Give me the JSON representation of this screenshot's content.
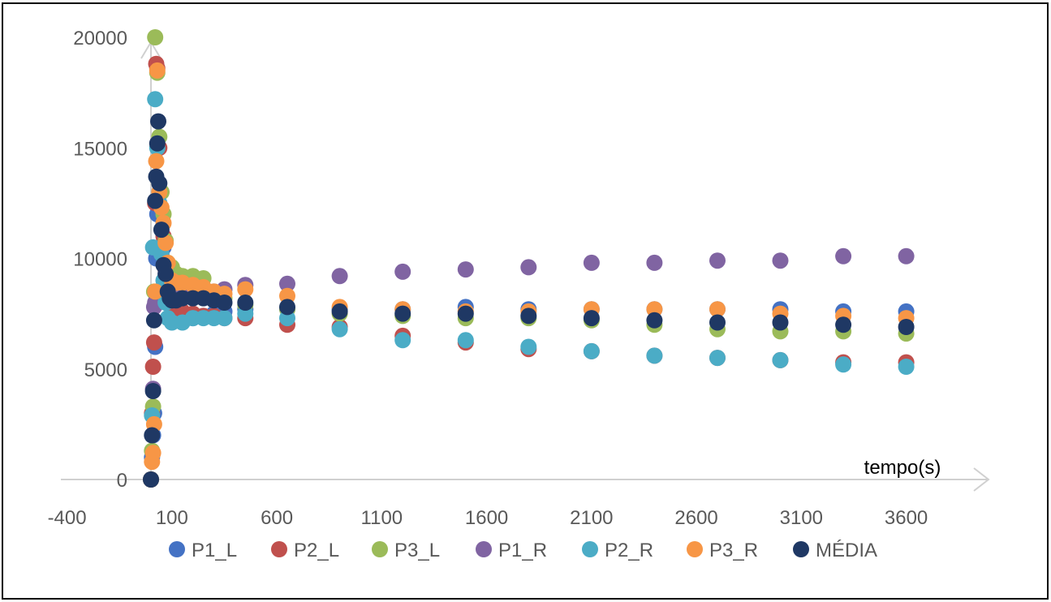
{
  "chart_data": {
    "type": "scatter",
    "title": "",
    "xlabel": "tempo(s)",
    "ylabel": "",
    "xlim": [
      -400,
      3600
    ],
    "ylim": [
      0,
      20000
    ],
    "xticks": [
      -400,
      100,
      600,
      1100,
      1600,
      2100,
      2600,
      3100,
      3600
    ],
    "yticks": [
      0,
      5000,
      10000,
      15000,
      20000
    ],
    "grid": false,
    "legend_position": "bottom",
    "series": [
      {
        "name": "P1_L",
        "color": "#4472C4",
        "points": [
          [
            0,
            0
          ],
          [
            5,
            1000
          ],
          [
            10,
            2000
          ],
          [
            15,
            3000
          ],
          [
            20,
            6000
          ],
          [
            25,
            10000
          ],
          [
            30,
            12000
          ],
          [
            40,
            13000
          ],
          [
            50,
            12000
          ],
          [
            60,
            10500
          ],
          [
            70,
            9500
          ],
          [
            80,
            8500
          ],
          [
            90,
            8000
          ],
          [
            100,
            7500
          ],
          [
            120,
            7300
          ],
          [
            150,
            7200
          ],
          [
            200,
            7300
          ],
          [
            250,
            7400
          ],
          [
            300,
            7500
          ],
          [
            350,
            7600
          ],
          [
            450,
            7700
          ],
          [
            650,
            7700
          ],
          [
            900,
            7700
          ],
          [
            1200,
            7700
          ],
          [
            1500,
            7800
          ],
          [
            1800,
            7700
          ],
          [
            2100,
            7700
          ],
          [
            2400,
            7700
          ],
          [
            2700,
            7700
          ],
          [
            3000,
            7700
          ],
          [
            3300,
            7600
          ],
          [
            3600,
            7600
          ]
        ]
      },
      {
        "name": "P2_L",
        "color": "#C0504D",
        "points": [
          [
            0,
            0
          ],
          [
            5,
            3000
          ],
          [
            10,
            5100
          ],
          [
            15,
            6200
          ],
          [
            20,
            12500
          ],
          [
            25,
            18800
          ],
          [
            30,
            18600
          ],
          [
            40,
            15000
          ],
          [
            50,
            13000
          ],
          [
            60,
            11000
          ],
          [
            70,
            9500
          ],
          [
            80,
            8500
          ],
          [
            90,
            8000
          ],
          [
            100,
            7800
          ],
          [
            150,
            7600
          ],
          [
            200,
            7500
          ],
          [
            250,
            7400
          ],
          [
            300,
            7400
          ],
          [
            350,
            7300
          ],
          [
            450,
            7300
          ],
          [
            650,
            7000
          ],
          [
            900,
            6900
          ],
          [
            1200,
            6500
          ],
          [
            1500,
            6200
          ],
          [
            1800,
            5900
          ],
          [
            2100,
            5800
          ],
          [
            2400,
            5600
          ],
          [
            2700,
            5500
          ],
          [
            3000,
            5400
          ],
          [
            3300,
            5300
          ],
          [
            3600,
            5300
          ]
        ]
      },
      {
        "name": "P3_L",
        "color": "#9BBB59",
        "points": [
          [
            0,
            0
          ],
          [
            5,
            1300
          ],
          [
            10,
            3300
          ],
          [
            15,
            8500
          ],
          [
            20,
            20000
          ],
          [
            30,
            18400
          ],
          [
            40,
            15500
          ],
          [
            50,
            13000
          ],
          [
            60,
            12000
          ],
          [
            70,
            10800
          ],
          [
            80,
            9800
          ],
          [
            100,
            9600
          ],
          [
            120,
            9300
          ],
          [
            150,
            9200
          ],
          [
            200,
            9200
          ],
          [
            250,
            9100
          ],
          [
            300,
            8500
          ],
          [
            350,
            8200
          ],
          [
            450,
            7900
          ],
          [
            650,
            7700
          ],
          [
            900,
            7500
          ],
          [
            1200,
            7400
          ],
          [
            1500,
            7300
          ],
          [
            1800,
            7300
          ],
          [
            2100,
            7200
          ],
          [
            2400,
            7000
          ],
          [
            2700,
            6800
          ],
          [
            3000,
            6700
          ],
          [
            3300,
            6700
          ],
          [
            3600,
            6600
          ]
        ]
      },
      {
        "name": "P1_R",
        "color": "#8064A2",
        "points": [
          [
            0,
            0
          ],
          [
            10,
            4100
          ],
          [
            15,
            7800
          ],
          [
            20,
            8000
          ],
          [
            30,
            8100
          ],
          [
            50,
            8200
          ],
          [
            100,
            8200
          ],
          [
            150,
            8300
          ],
          [
            200,
            8300
          ],
          [
            250,
            8400
          ],
          [
            300,
            8500
          ],
          [
            350,
            8600
          ],
          [
            450,
            8800
          ],
          [
            650,
            8850
          ],
          [
            900,
            9200
          ],
          [
            1200,
            9400
          ],
          [
            1500,
            9500
          ],
          [
            1800,
            9600
          ],
          [
            2100,
            9800
          ],
          [
            2400,
            9800
          ],
          [
            2700,
            9900
          ],
          [
            3000,
            9900
          ],
          [
            3300,
            10100
          ],
          [
            3600,
            10100
          ]
        ]
      },
      {
        "name": "P2_R",
        "color": "#4BACC6",
        "points": [
          [
            0,
            0
          ],
          [
            5,
            2900
          ],
          [
            10,
            10500
          ],
          [
            20,
            17200
          ],
          [
            30,
            15000
          ],
          [
            40,
            12500
          ],
          [
            50,
            10200
          ],
          [
            60,
            9000
          ],
          [
            70,
            8000
          ],
          [
            80,
            7300
          ],
          [
            100,
            7100
          ],
          [
            150,
            7100
          ],
          [
            200,
            7300
          ],
          [
            250,
            7300
          ],
          [
            300,
            7300
          ],
          [
            350,
            7300
          ],
          [
            450,
            7500
          ],
          [
            650,
            7300
          ],
          [
            900,
            6800
          ],
          [
            1200,
            6300
          ],
          [
            1500,
            6300
          ],
          [
            1800,
            6000
          ],
          [
            2100,
            5800
          ],
          [
            2400,
            5600
          ],
          [
            2700,
            5500
          ],
          [
            3000,
            5400
          ],
          [
            3300,
            5200
          ],
          [
            3600,
            5100
          ]
        ]
      },
      {
        "name": "P3_R",
        "color": "#F79646",
        "points": [
          [
            0,
            0
          ],
          [
            5,
            800
          ],
          [
            10,
            1200
          ],
          [
            15,
            2500
          ],
          [
            20,
            8500
          ],
          [
            25,
            14400
          ],
          [
            30,
            18500
          ],
          [
            40,
            13000
          ],
          [
            50,
            12300
          ],
          [
            60,
            11600
          ],
          [
            70,
            10700
          ],
          [
            80,
            9800
          ],
          [
            100,
            9000
          ],
          [
            120,
            8900
          ],
          [
            150,
            8900
          ],
          [
            200,
            8800
          ],
          [
            250,
            8700
          ],
          [
            300,
            8500
          ],
          [
            350,
            8400
          ],
          [
            450,
            8600
          ],
          [
            650,
            8300
          ],
          [
            900,
            7800
          ],
          [
            1200,
            7700
          ],
          [
            1500,
            7600
          ],
          [
            1800,
            7600
          ],
          [
            2100,
            7700
          ],
          [
            2400,
            7700
          ],
          [
            2700,
            7700
          ],
          [
            3000,
            7500
          ],
          [
            3300,
            7400
          ],
          [
            3600,
            7300
          ]
        ]
      },
      {
        "name": "MÉDIA",
        "color": "#1F3864",
        "points": [
          [
            0,
            0
          ],
          [
            5,
            2000
          ],
          [
            10,
            4000
          ],
          [
            15,
            7200
          ],
          [
            20,
            12600
          ],
          [
            25,
            13700
          ],
          [
            30,
            15200
          ],
          [
            35,
            16200
          ],
          [
            40,
            13400
          ],
          [
            50,
            11300
          ],
          [
            60,
            9700
          ],
          [
            70,
            9300
          ],
          [
            80,
            8500
          ],
          [
            90,
            8200
          ],
          [
            100,
            8100
          ],
          [
            120,
            8100
          ],
          [
            150,
            8200
          ],
          [
            200,
            8200
          ],
          [
            250,
            8200
          ],
          [
            300,
            8100
          ],
          [
            350,
            8000
          ],
          [
            450,
            8000
          ],
          [
            650,
            7800
          ],
          [
            900,
            7600
          ],
          [
            1200,
            7500
          ],
          [
            1500,
            7500
          ],
          [
            1800,
            7400
          ],
          [
            2100,
            7300
          ],
          [
            2400,
            7200
          ],
          [
            2700,
            7100
          ],
          [
            3000,
            7100
          ],
          [
            3300,
            7000
          ],
          [
            3600,
            6900
          ]
        ]
      }
    ]
  }
}
